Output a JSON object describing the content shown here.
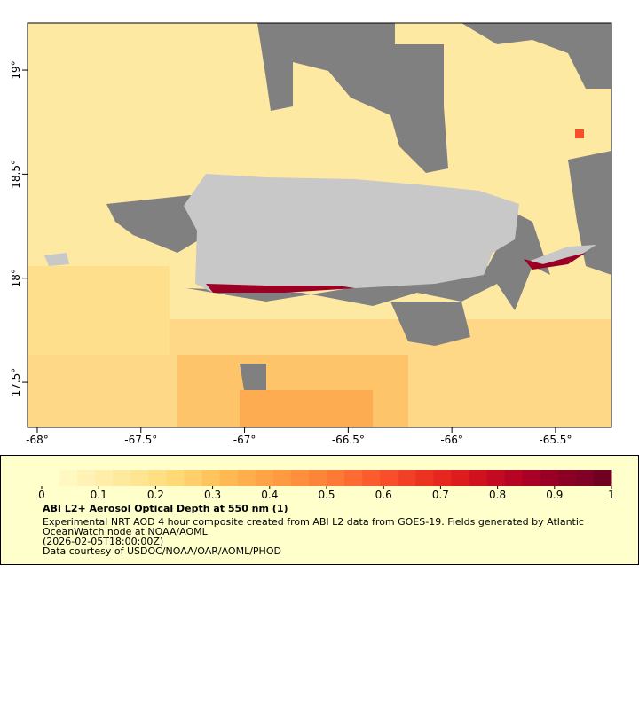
{
  "map": {
    "xlim": [
      -68.047,
      -65.23
    ],
    "ylim": [
      17.283,
      19.226
    ],
    "xticks": [
      {
        "value": -68,
        "label": "-68°"
      },
      {
        "value": -67.5,
        "label": "-67.5°"
      },
      {
        "value": -67,
        "label": "-67°"
      },
      {
        "value": -66.5,
        "label": "-66.5°"
      },
      {
        "value": -66,
        "label": "-66°"
      },
      {
        "value": -65.5,
        "label": "-65.5°"
      }
    ],
    "yticks": [
      {
        "value": 17.5,
        "label": "17.5°"
      },
      {
        "value": 18,
        "label": "18°"
      },
      {
        "value": 18.5,
        "label": "18.5°"
      },
      {
        "value": 19,
        "label": "19°"
      }
    ]
  },
  "colorbar": {
    "lim": [
      0,
      1
    ],
    "ticks": [
      0,
      0.1,
      0.2,
      0.3,
      0.4,
      0.5,
      0.6,
      0.7,
      0.8,
      0.9,
      1
    ],
    "colors": [
      "#ffffcc",
      "#fff8c0",
      "#fff2b4",
      "#ffeda8",
      "#feea9c",
      "#fee590",
      "#fedf84",
      "#fed976",
      "#fecf6a",
      "#fec45e",
      "#feb952",
      "#feae4a",
      "#fea446",
      "#fd9a42",
      "#fd8f3e",
      "#fd853a",
      "#fc7a36",
      "#fc6b32",
      "#fb5c2e",
      "#f84e2a",
      "#f24026",
      "#ec3322",
      "#e6261f",
      "#dc1c1d",
      "#d0121f",
      "#c40a22",
      "#b70424",
      "#a80026",
      "#9a0026",
      "#8c0026",
      "#800026",
      "#700020"
    ],
    "title": "ABI L2+ Aerosol Optical Depth at 550 nm (1)",
    "lines": [
      "Experimental NRT AOD 4 hour composite created from ABI L2 data from GOES-19. Fields generated by Atlantic",
      "OceanWatch node at NOAA/AOML",
      "(2026-02-05T18:00:00Z)",
      "Data courtesy of USDOC/NOAA/OAR/AOML/PHOD"
    ]
  }
}
